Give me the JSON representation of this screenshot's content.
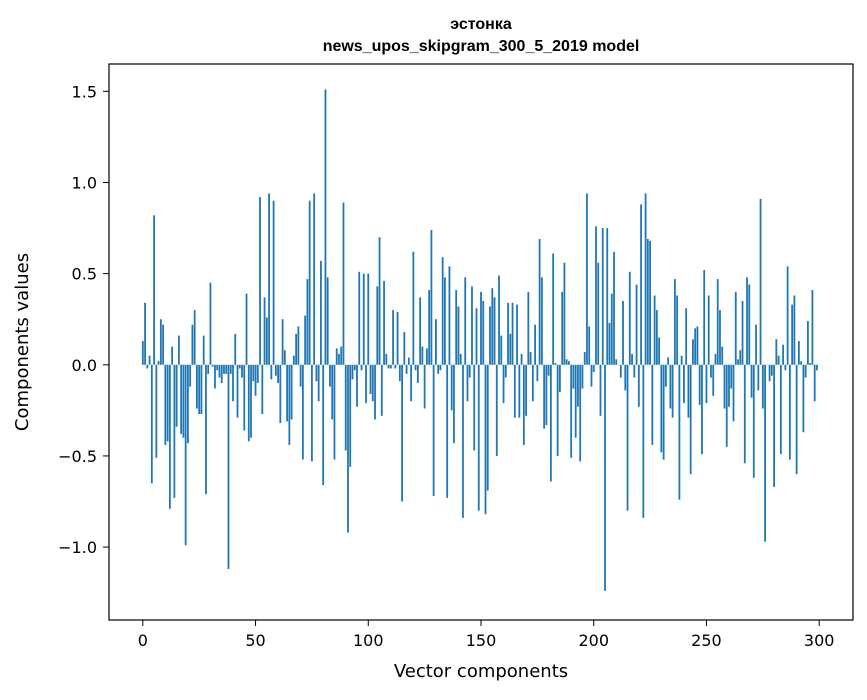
{
  "chart_data": {
    "type": "bar",
    "title": "эстонка",
    "subtitle": "news_upos_skipgram_300_5_2019 model",
    "xlabel": "Vector components",
    "ylabel": "Components values",
    "xlim": [
      -15,
      315
    ],
    "ylim": [
      -1.4,
      1.65
    ],
    "x_ticks": [
      0,
      50,
      100,
      150,
      200,
      250,
      300
    ],
    "y_ticks": [
      -1.0,
      -0.5,
      0.0,
      0.5,
      1.0,
      1.5
    ],
    "y_tick_labels": [
      "−1.0",
      "−0.5",
      "0.0",
      "0.5",
      "1.0",
      "1.5"
    ],
    "grid": false,
    "color": "#1f77b4",
    "x": [
      0,
      1,
      2,
      3,
      4,
      5,
      6,
      7,
      8,
      9,
      10,
      11,
      12,
      13,
      14,
      15,
      16,
      17,
      18,
      19,
      20,
      21,
      22,
      23,
      24,
      25,
      26,
      27,
      28,
      29,
      30,
      31,
      32,
      33,
      34,
      35,
      36,
      37,
      38,
      39,
      40,
      41,
      42,
      43,
      44,
      45,
      46,
      47,
      48,
      49,
      50,
      51,
      52,
      53,
      54,
      55,
      56,
      57,
      58,
      59,
      60,
      61,
      62,
      63,
      64,
      65,
      66,
      67,
      68,
      69,
      70,
      71,
      72,
      73,
      74,
      75,
      76,
      77,
      78,
      79,
      80,
      81,
      82,
      83,
      84,
      85,
      86,
      87,
      88,
      89,
      90,
      91,
      92,
      93,
      94,
      95,
      96,
      97,
      98,
      99,
      100,
      101,
      102,
      103,
      104,
      105,
      106,
      107,
      108,
      109,
      110,
      111,
      112,
      113,
      114,
      115,
      116,
      117,
      118,
      119,
      120,
      121,
      122,
      123,
      124,
      125,
      126,
      127,
      128,
      129,
      130,
      131,
      132,
      133,
      134,
      135,
      136,
      137,
      138,
      139,
      140,
      141,
      142,
      143,
      144,
      145,
      146,
      147,
      148,
      149,
      150,
      151,
      152,
      153,
      154,
      155,
      156,
      157,
      158,
      159,
      160,
      161,
      162,
      163,
      164,
      165,
      166,
      167,
      168,
      169,
      170,
      171,
      172,
      173,
      174,
      175,
      176,
      177,
      178,
      179,
      180,
      181,
      182,
      183,
      184,
      185,
      186,
      187,
      188,
      189,
      190,
      191,
      192,
      193,
      194,
      195,
      196,
      197,
      198,
      199,
      200,
      201,
      202,
      203,
      204,
      205,
      206,
      207,
      208,
      209,
      210,
      211,
      212,
      213,
      214,
      215,
      216,
      217,
      218,
      219,
      220,
      221,
      222,
      223,
      224,
      225,
      226,
      227,
      228,
      229,
      230,
      231,
      232,
      233,
      234,
      235,
      236,
      237,
      238,
      239,
      240,
      241,
      242,
      243,
      244,
      245,
      246,
      247,
      248,
      249,
      250,
      251,
      252,
      253,
      254,
      255,
      256,
      257,
      258,
      259,
      260,
      261,
      262,
      263,
      264,
      265,
      266,
      267,
      268,
      269,
      270,
      271,
      272,
      273,
      274,
      275,
      276,
      277,
      278,
      279,
      280,
      281,
      282,
      283,
      284,
      285,
      286,
      287,
      288,
      289,
      290,
      291,
      292,
      293,
      294,
      295,
      296,
      297,
      298,
      299
    ],
    "values": [
      0.13,
      0.34,
      -0.02,
      0.05,
      -0.65,
      0.82,
      -0.51,
      0.02,
      0.25,
      0.22,
      -0.44,
      -0.42,
      -0.79,
      0.1,
      -0.73,
      -0.34,
      0.16,
      -0.38,
      -0.4,
      -0.99,
      -0.43,
      -0.12,
      0.22,
      0.3,
      -0.24,
      -0.27,
      -0.27,
      0.16,
      -0.71,
      -0.05,
      0.45,
      -0.01,
      -0.13,
      -0.03,
      -0.07,
      -0.1,
      -0.05,
      -0.05,
      -1.12,
      -0.05,
      -0.2,
      0.17,
      -0.29,
      -0.02,
      -0.07,
      -0.36,
      0.39,
      -0.42,
      -0.4,
      -0.09,
      -0.17,
      -0.1,
      0.92,
      -0.27,
      0.37,
      0.26,
      0.94,
      -0.08,
      0.9,
      -0.06,
      -0.1,
      -0.32,
      0.25,
      0.08,
      -0.31,
      -0.44,
      -0.3,
      0.05,
      0.17,
      0.21,
      -0.12,
      -0.52,
      0.27,
      0.47,
      0.9,
      -0.53,
      0.94,
      -0.09,
      -0.2,
      0.57,
      -0.66,
      1.51,
      0.48,
      -0.12,
      -0.3,
      -0.52,
      0.09,
      0.06,
      0.1,
      0.89,
      -0.47,
      -0.92,
      -0.56,
      -0.08,
      -0.03,
      -0.23,
      0.51,
      -0.03,
      0.5,
      -0.21,
      0.5,
      -0.16,
      -0.2,
      -0.3,
      0.43,
      0.7,
      -0.28,
      0.46,
      0.06,
      -0.02,
      -0.02,
      0.3,
      -0.02,
      0.29,
      -0.09,
      -0.75,
      0.18,
      -0.05,
      0.04,
      -0.2,
      0.62,
      -0.03,
      -0.1,
      0.37,
      0.1,
      -0.24,
      0.09,
      0.41,
      0.74,
      -0.72,
      0.25,
      -0.05,
      -0.03,
      0.59,
      0.48,
      -0.73,
      0.54,
      -0.25,
      -0.43,
      0.41,
      0.32,
      0.06,
      -0.84,
      0.48,
      -0.2,
      -0.07,
      0.43,
      -0.47,
      0.31,
      -0.8,
      0.4,
      0.35,
      -0.82,
      -0.69,
      0.32,
      0.42,
      0.37,
      -0.5,
      0.49,
      0.16,
      -0.21,
      -0.07,
      0.34,
      0.17,
      0.34,
      -0.29,
      0.33,
      -0.29,
      0.06,
      -0.44,
      -0.28,
      0.4,
      0.07,
      -0.2,
      0.22,
      -0.09,
      0.69,
      0.48,
      -0.35,
      -0.33,
      -0.06,
      -0.64,
      0.61,
      0.01,
      -0.5,
      -0.15,
      0.4,
      0.56,
      0.03,
      0.02,
      -0.51,
      -0.13,
      -0.4,
      -0.23,
      -0.53,
      -0.13,
      0.07,
      0.94,
      0.21,
      -0.12,
      -0.04,
      0.76,
      0.56,
      -0.28,
      0.75,
      -1.24,
      0.75,
      0.23,
      0.39,
      0.62,
      0.03,
      0.0,
      -0.07,
      0.35,
      -0.14,
      -0.8,
      0.51,
      0.06,
      -0.07,
      0.44,
      -0.23,
      0.88,
      -0.84,
      0.94,
      0.69,
      0.68,
      -0.44,
      0.38,
      0.3,
      0.15,
      -0.48,
      -0.52,
      -0.12,
      0.04,
      -0.24,
      -0.29,
      0.47,
      0.38,
      -0.74,
      0.05,
      -0.21,
      0.31,
      -0.29,
      -0.6,
      0.14,
      0.2,
      0.21,
      -0.22,
      -0.49,
      0.52,
      -0.21,
      0.38,
      -0.07,
      -0.17,
      0.06,
      0.47,
      0.3,
      0.1,
      -0.24,
      -0.45,
      -0.23,
      -0.13,
      -0.31,
      0.4,
      0.03,
      0.08,
      0.35,
      -0.54,
      0.48,
      0.44,
      -0.18,
      -0.62,
      0.22,
      -0.14,
      0.91,
      -0.24,
      -0.97,
      0.0,
      -0.09,
      -0.06,
      -0.67,
      0.14,
      0.05,
      -0.49,
      0.11,
      -0.03,
      0.54,
      -0.52,
      0.33,
      0.38,
      -0.6,
      0.13,
      0.02,
      -0.37,
      -0.07,
      0.24,
      0.01,
      0.41,
      -0.2,
      -0.03
    ]
  }
}
